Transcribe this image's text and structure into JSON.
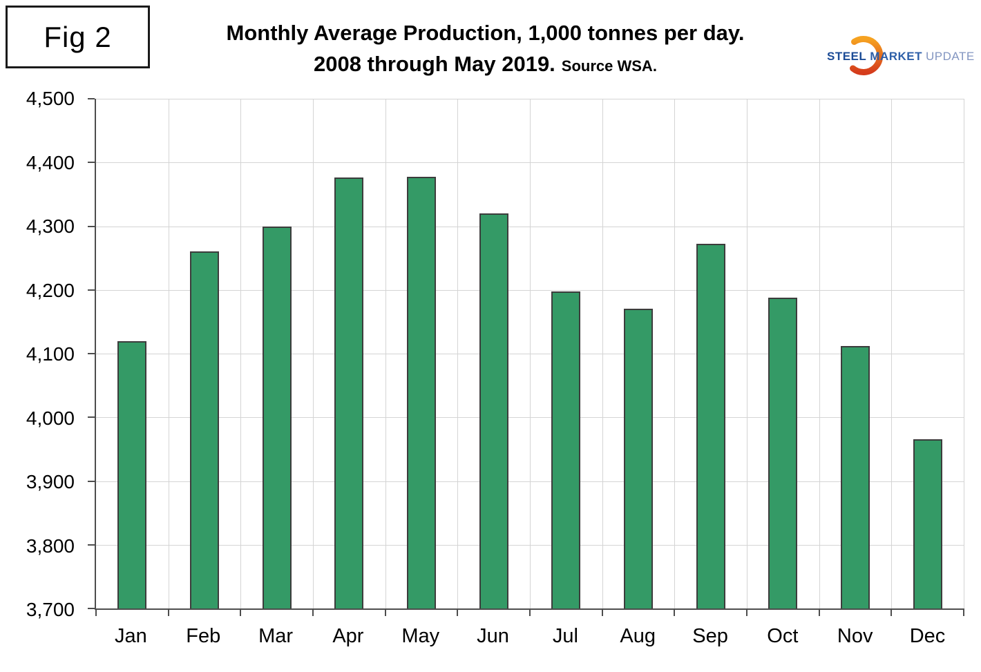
{
  "fig_label": "Fig 2",
  "title": {
    "line1": "Monthly Average Production, 1,000 tonnes per day.",
    "line2": "2008 through May 2019.",
    "source": "Source WSA."
  },
  "logo": {
    "steel": "STEEL",
    "market": "MARKET",
    "update": "UPDATE",
    "steel_color": "#1b4b96",
    "market_color": "#2d5fa8",
    "update_color": "#8295c1",
    "crescent_top_color": "#f6a220",
    "crescent_bottom_color": "#d53c1c"
  },
  "chart_data": {
    "type": "bar",
    "title": "Monthly Average Production, 1,000 tonnes per day. 2008 through May 2019. Source WSA.",
    "categories": [
      "Jan",
      "Feb",
      "Mar",
      "Apr",
      "May",
      "Jun",
      "Jul",
      "Aug",
      "Sep",
      "Oct",
      "Nov",
      "Dec"
    ],
    "values": [
      4120,
      4260,
      4299,
      4376,
      4377,
      4320,
      4198,
      4170,
      4272,
      4188,
      4112,
      3966
    ],
    "xlabel": "",
    "ylabel": "",
    "ylim": [
      3700,
      4500
    ],
    "ytick_values": [
      3700,
      3800,
      3900,
      4000,
      4100,
      4200,
      4300,
      4400,
      4500
    ],
    "ytick_labels": [
      "3,700",
      "3,800",
      "3,900",
      "4,000",
      "4,100",
      "4,200",
      "4,300",
      "4,400",
      "4,500"
    ],
    "grid": "horizontal and vertical gridlines on",
    "legend": "none",
    "bar_color": "#349a66",
    "bar_border_color": "#3c3c3c",
    "gridline_color": "#d4d4d4",
    "axis_color": "#4d4d4d"
  }
}
